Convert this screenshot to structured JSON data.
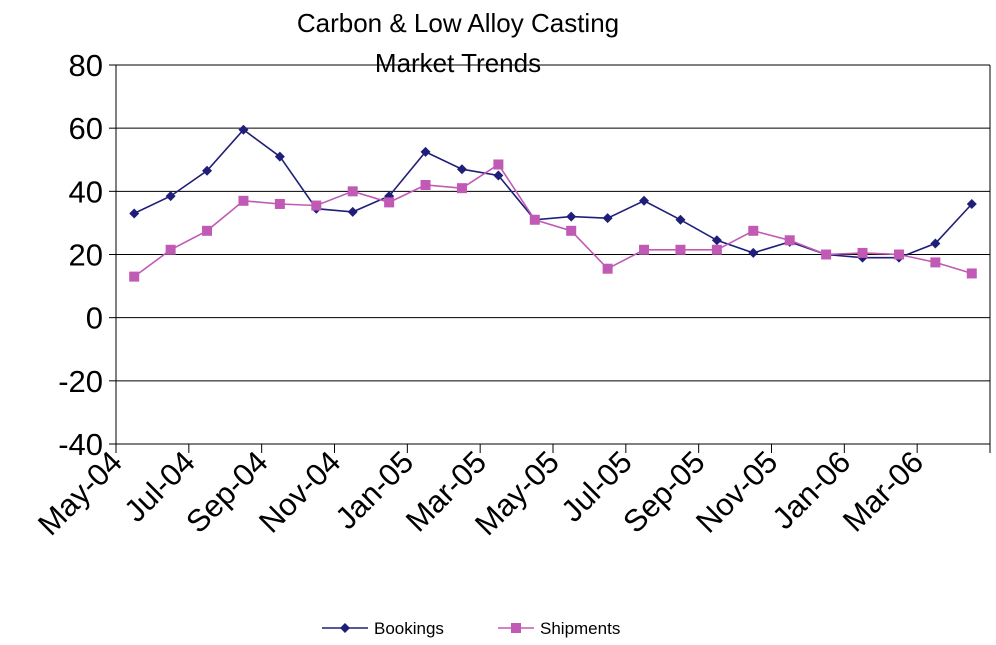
{
  "chart_data": {
    "type": "line",
    "title_line1": "Carbon & Low Alloy Casting",
    "title_line2": "Market Trends",
    "xlabel": "",
    "ylabel": "",
    "ylim": [
      -40,
      80
    ],
    "yticks": [
      80,
      60,
      40,
      20,
      0,
      -20,
      -40
    ],
    "grid": true,
    "legend_position": "bottom",
    "categories": [
      "May-04",
      "Jun-04",
      "Jul-04",
      "Aug-04",
      "Sep-04",
      "Oct-04",
      "Nov-04",
      "Dec-04",
      "Jan-05",
      "Feb-05",
      "Mar-05",
      "Apr-05",
      "May-05",
      "Jun-05",
      "Jul-05",
      "Aug-05",
      "Sep-05",
      "Oct-05",
      "Nov-05",
      "Dec-05",
      "Jan-06",
      "Feb-06",
      "Mar-06",
      "Apr-06"
    ],
    "x_tick_labels": [
      "May-04",
      "Jul-04",
      "Sep-04",
      "Nov-04",
      "Jan-05",
      "Mar-05",
      "May-05",
      "Jul-05",
      "Sep-05",
      "Nov-05",
      "Jan-06",
      "Mar-06"
    ],
    "series": [
      {
        "name": "Bookings",
        "color": "#1f1f7a",
        "marker": "diamond",
        "values": [
          33,
          38.5,
          46.5,
          59.5,
          51,
          34.5,
          33.5,
          38.5,
          52.5,
          47,
          45,
          31,
          32,
          31.5,
          37,
          31,
          24.5,
          20.5,
          24,
          20,
          19,
          19,
          23.5,
          36
        ]
      },
      {
        "name": "Shipments",
        "color": "#c05ab5",
        "marker": "square",
        "values": [
          13,
          21.5,
          27.5,
          37,
          36,
          35.5,
          40,
          36.5,
          42,
          41,
          48.5,
          31,
          27.5,
          15.5,
          21.5,
          21.5,
          21.5,
          27.5,
          24.5,
          20,
          20.5,
          20,
          17.5,
          14
        ]
      }
    ]
  }
}
